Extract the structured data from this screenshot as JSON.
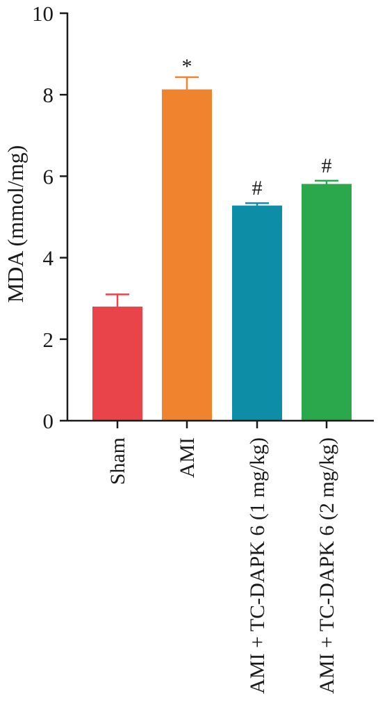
{
  "chart_data": {
    "type": "bar",
    "title": "",
    "xlabel": "",
    "ylabel": "MDA (mmol/mg)",
    "ylim": [
      0,
      10
    ],
    "yticks": [
      0,
      2,
      4,
      6,
      8,
      10
    ],
    "grid": false,
    "categories": [
      "Sham",
      "AMI",
      "AMI + TC-DAPK 6 (1 mg/kg)",
      "AMI + TC-DAPK 6 (2 mg/kg)"
    ],
    "values": [
      2.8,
      8.13,
      5.28,
      5.81
    ],
    "errors": [
      0.3,
      0.3,
      0.06,
      0.08
    ],
    "annotations": [
      "",
      "*",
      "#",
      "#"
    ],
    "colors": [
      "#e8444a",
      "#ef832e",
      "#0d8ea6",
      "#2aa84b"
    ]
  }
}
